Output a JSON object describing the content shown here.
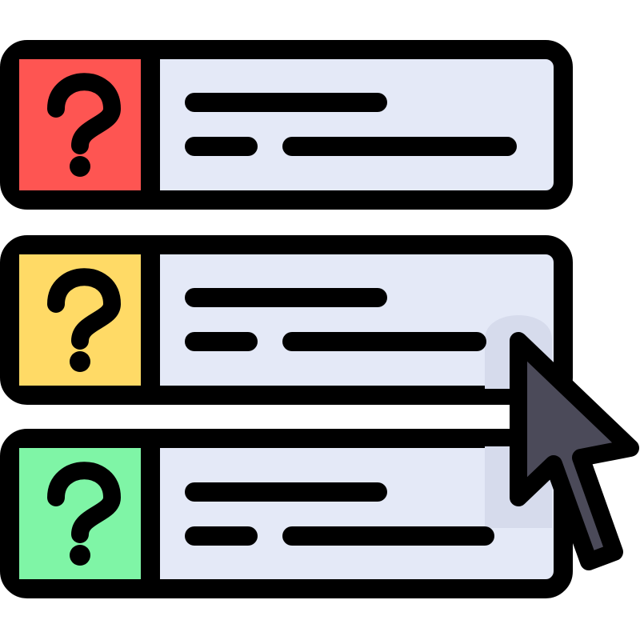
{
  "colors": {
    "outline": "#000000",
    "panel_fill": "#e4e9f7",
    "panel_shade": "#d6dbec",
    "cursor_fill": "#4b4a59",
    "background": "#ffffff"
  },
  "list": {
    "items": [
      {
        "icon": "question-mark-icon",
        "icon_color": "#fe5552"
      },
      {
        "icon": "question-mark-icon",
        "icon_color": "#ffda66"
      },
      {
        "icon": "question-mark-icon",
        "icon_color": "#7ff5a6"
      }
    ]
  },
  "pointer": {
    "icon": "mouse-cursor-icon"
  }
}
